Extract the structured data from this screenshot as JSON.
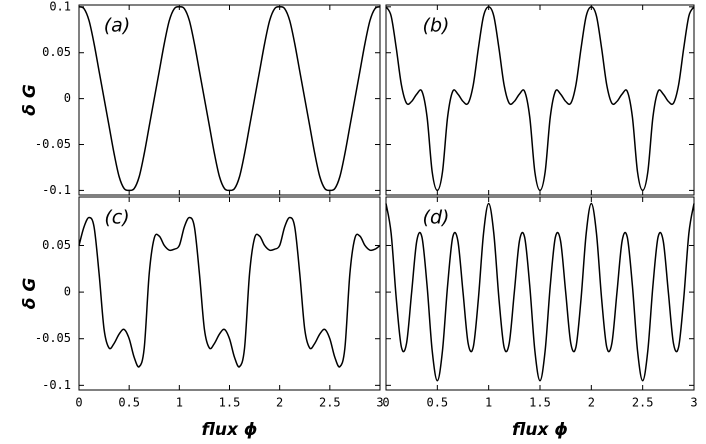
{
  "chart_data": [
    {
      "type": "line",
      "annotation": "(a)",
      "y_label": "δ G",
      "x": [
        0,
        0.05,
        0.1,
        0.15,
        0.2,
        0.25,
        0.3,
        0.35,
        0.4,
        0.45,
        0.5,
        0.55,
        0.6,
        0.65,
        0.7,
        0.75,
        0.8,
        0.85,
        0.9,
        0.95,
        1,
        1.05,
        1.1,
        1.15,
        1.2,
        1.25,
        1.3,
        1.35,
        1.4,
        1.45,
        1.5,
        1.55,
        1.6,
        1.65,
        1.7,
        1.75,
        1.8,
        1.85,
        1.9,
        1.95,
        2,
        2.05,
        2.1,
        2.15,
        2.2,
        2.25,
        2.3,
        2.35,
        2.4,
        2.45,
        2.5,
        2.55,
        2.6,
        2.65,
        2.7,
        2.75,
        2.8,
        2.85,
        2.9,
        2.95,
        3
      ],
      "values": [
        0.1,
        0.098,
        0.085,
        0.06,
        0.03,
        0,
        -0.03,
        -0.06,
        -0.085,
        -0.098,
        -0.1,
        -0.098,
        -0.085,
        -0.06,
        -0.03,
        0,
        0.03,
        0.06,
        0.085,
        0.098,
        0.1,
        0.098,
        0.085,
        0.06,
        0.03,
        0,
        -0.03,
        -0.06,
        -0.085,
        -0.098,
        -0.1,
        -0.098,
        -0.085,
        -0.06,
        -0.03,
        0,
        0.03,
        0.06,
        0.085,
        0.098,
        0.1,
        0.098,
        0.085,
        0.06,
        0.03,
        0,
        -0.03,
        -0.06,
        -0.085,
        -0.098,
        -0.1,
        -0.098,
        -0.085,
        -0.06,
        -0.03,
        0,
        0.03,
        0.06,
        0.085,
        0.098,
        0.1
      ],
      "color": "#000000",
      "xlim": [
        0,
        3
      ],
      "ylim": [
        -0.105,
        0.102
      ],
      "xticks": [
        0,
        0.5,
        1,
        1.5,
        2,
        2.5,
        3
      ],
      "yticks": [
        0.1,
        0.05,
        0,
        -0.05,
        -0.1
      ]
    },
    {
      "type": "line",
      "annotation": "(b)",
      "x": [
        0,
        0.05,
        0.1,
        0.15,
        0.2,
        0.25,
        0.3,
        0.35,
        0.4,
        0.45,
        0.5,
        0.55,
        0.6,
        0.65,
        0.7,
        0.75,
        0.8,
        0.85,
        0.9,
        0.95,
        1,
        1.05,
        1.1,
        1.15,
        1.2,
        1.25,
        1.3,
        1.35,
        1.4,
        1.45,
        1.5,
        1.55,
        1.6,
        1.65,
        1.7,
        1.75,
        1.8,
        1.85,
        1.9,
        1.95,
        2,
        2.05,
        2.1,
        2.15,
        2.2,
        2.25,
        2.3,
        2.35,
        2.4,
        2.45,
        2.5,
        2.55,
        2.6,
        2.65,
        2.7,
        2.75,
        2.8,
        2.85,
        2.9,
        2.95,
        3
      ],
      "values": [
        0.1,
        0.09,
        0.055,
        0.015,
        -0.005,
        -0.003,
        0.005,
        0.008,
        -0.02,
        -0.08,
        -0.1,
        -0.08,
        -0.02,
        0.008,
        0.005,
        -0.003,
        -0.005,
        0.015,
        0.055,
        0.09,
        0.1,
        0.09,
        0.055,
        0.015,
        -0.005,
        -0.003,
        0.005,
        0.008,
        -0.02,
        -0.08,
        -0.1,
        -0.08,
        -0.02,
        0.008,
        0.005,
        -0.003,
        -0.005,
        0.015,
        0.055,
        0.09,
        0.1,
        0.09,
        0.055,
        0.015,
        -0.005,
        -0.003,
        0.005,
        0.008,
        -0.02,
        -0.08,
        -0.1,
        -0.08,
        -0.02,
        0.008,
        0.005,
        -0.003,
        -0.005,
        0.015,
        0.055,
        0.09,
        0.1
      ],
      "color": "#000000",
      "xlim": [
        0,
        3
      ],
      "ylim": [
        -0.105,
        0.102
      ],
      "xticks": [
        0,
        0.5,
        1,
        1.5,
        2,
        2.5,
        3
      ],
      "yticks": [
        0.1,
        0.05,
        0,
        -0.05,
        -0.1
      ]
    },
    {
      "type": "line",
      "annotation": "(c)",
      "y_label": "δ G",
      "x_label": "flux ϕ",
      "x": [
        0,
        0.05,
        0.1,
        0.15,
        0.2,
        0.25,
        0.3,
        0.35,
        0.4,
        0.45,
        0.5,
        0.55,
        0.6,
        0.65,
        0.7,
        0.75,
        0.8,
        0.85,
        0.9,
        0.95,
        1,
        1.05,
        1.1,
        1.15,
        1.2,
        1.25,
        1.3,
        1.35,
        1.4,
        1.45,
        1.5,
        1.55,
        1.6,
        1.65,
        1.7,
        1.75,
        1.8,
        1.85,
        1.9,
        1.95,
        2,
        2.05,
        2.1,
        2.15,
        2.2,
        2.25,
        2.3,
        2.35,
        2.4,
        2.45,
        2.5,
        2.55,
        2.6,
        2.65,
        2.7,
        2.75,
        2.8,
        2.85,
        2.9,
        2.95,
        3
      ],
      "values": [
        0.05,
        0.07,
        0.08,
        0.07,
        0.02,
        -0.04,
        -0.06,
        -0.055,
        -0.045,
        -0.04,
        -0.05,
        -0.07,
        -0.08,
        -0.06,
        0.02,
        0.058,
        0.06,
        0.05,
        0.045,
        0.046,
        0.05,
        0.07,
        0.08,
        0.07,
        0.02,
        -0.04,
        -0.06,
        -0.055,
        -0.045,
        -0.04,
        -0.05,
        -0.07,
        -0.08,
        -0.06,
        0.02,
        0.058,
        0.06,
        0.05,
        0.045,
        0.046,
        0.05,
        0.07,
        0.08,
        0.07,
        0.02,
        -0.04,
        -0.06,
        -0.055,
        -0.045,
        -0.04,
        -0.05,
        -0.07,
        -0.08,
        -0.06,
        0.02,
        0.058,
        0.06,
        0.05,
        0.045,
        0.046,
        0.05
      ],
      "color": "#000000",
      "xlim": [
        0,
        3
      ],
      "ylim": [
        -0.105,
        0.102
      ],
      "xticks": [
        0,
        0.5,
        1,
        1.5,
        2,
        2.5,
        3
      ],
      "yticks": [
        0.05,
        0,
        -0.05,
        -0.1
      ]
    },
    {
      "type": "line",
      "annotation": "(d)",
      "x_label": "flux ϕ",
      "x": [
        0,
        0.05,
        0.1,
        0.15,
        0.2,
        0.25,
        0.3,
        0.35,
        0.4,
        0.45,
        0.5,
        0.55,
        0.6,
        0.65,
        0.7,
        0.75,
        0.8,
        0.85,
        0.9,
        0.95,
        1,
        1.05,
        1.1,
        1.15,
        1.2,
        1.25,
        1.3,
        1.35,
        1.4,
        1.45,
        1.5,
        1.55,
        1.6,
        1.65,
        1.7,
        1.75,
        1.8,
        1.85,
        1.9,
        1.95,
        2,
        2.05,
        2.1,
        2.15,
        2.2,
        2.25,
        2.3,
        2.35,
        2.4,
        2.45,
        2.5,
        2.55,
        2.6,
        2.65,
        2.7,
        2.75,
        2.8,
        2.85,
        2.9,
        2.95,
        3
      ],
      "values": [
        0.095,
        0.063,
        -0.007,
        -0.059,
        -0.055,
        0,
        0.055,
        0.059,
        0.007,
        -0.063,
        -0.095,
        -0.063,
        0.007,
        0.059,
        0.055,
        0,
        -0.055,
        -0.059,
        -0.007,
        0.063,
        0.095,
        0.063,
        -0.007,
        -0.059,
        -0.055,
        0,
        0.055,
        0.059,
        0.007,
        -0.063,
        -0.095,
        -0.063,
        0.007,
        0.059,
        0.055,
        0,
        -0.055,
        -0.059,
        -0.007,
        0.063,
        0.095,
        0.063,
        -0.007,
        -0.059,
        -0.055,
        0,
        0.055,
        0.059,
        0.007,
        -0.063,
        -0.095,
        -0.063,
        0.007,
        0.059,
        0.055,
        0,
        -0.055,
        -0.059,
        -0.007,
        0.063,
        0.095
      ],
      "color": "#000000",
      "xlim": [
        0,
        3
      ],
      "ylim": [
        -0.105,
        0.102
      ],
      "xticks": [
        0,
        0.5,
        1,
        1.5,
        2,
        2.5,
        3
      ],
      "yticks": [
        0.05,
        0,
        -0.05,
        -0.1
      ]
    }
  ]
}
